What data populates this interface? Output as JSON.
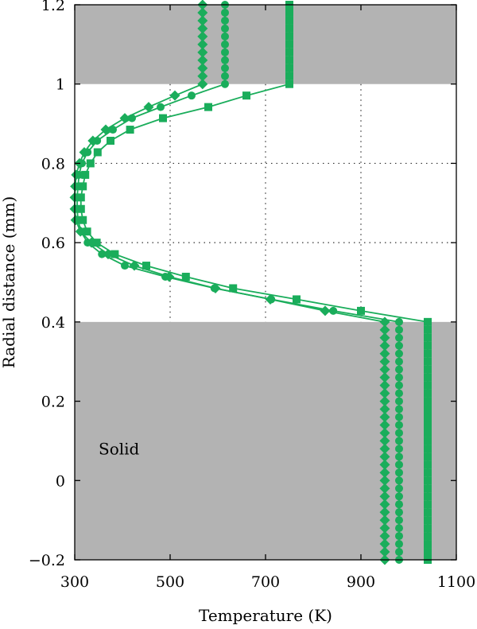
{
  "chart_data": {
    "type": "line",
    "xlabel": "Temperature (K)",
    "ylabel": "Radial distance (mm)",
    "xlim": [
      300,
      1100
    ],
    "ylim": [
      -0.2,
      1.2
    ],
    "x_ticks": [
      "300",
      "500",
      "700",
      "900",
      "1100"
    ],
    "y_ticks": [
      "−0.2",
      "0",
      "0.2",
      "0.4",
      "0.6",
      "0.8",
      "1",
      "1.2"
    ],
    "x_tick_values": [
      300,
      500,
      700,
      900,
      1100
    ],
    "y_tick_values": [
      -0.2,
      0,
      0.2,
      0.4,
      0.6,
      0.8,
      1.0,
      1.2
    ],
    "grid": "dotted, gas region only",
    "shaded_regions": [
      {
        "y": [
          1.0,
          1.2
        ],
        "color": "#b3b3b3"
      },
      {
        "y": [
          -0.2,
          0.4
        ],
        "color": "#b3b3b3"
      }
    ],
    "annotations": [
      {
        "text": "Solid",
        "x": 400,
        "y": 0.08
      }
    ],
    "color": "#1aad5b",
    "series": [
      {
        "marker": "square",
        "points": [
          [
            1040,
            -0.2
          ],
          [
            1040,
            -0.18
          ],
          [
            1040,
            -0.16
          ],
          [
            1040,
            -0.14
          ],
          [
            1040,
            -0.12
          ],
          [
            1040,
            -0.1
          ],
          [
            1040,
            -0.08
          ],
          [
            1040,
            -0.06
          ],
          [
            1040,
            -0.04
          ],
          [
            1040,
            -0.02
          ],
          [
            1040,
            0.0
          ],
          [
            1040,
            0.02
          ],
          [
            1040,
            0.04
          ],
          [
            1040,
            0.06
          ],
          [
            1040,
            0.08
          ],
          [
            1040,
            0.1
          ],
          [
            1040,
            0.12
          ],
          [
            1040,
            0.14
          ],
          [
            1040,
            0.16
          ],
          [
            1040,
            0.18
          ],
          [
            1040,
            0.2
          ],
          [
            1040,
            0.22
          ],
          [
            1040,
            0.24
          ],
          [
            1040,
            0.26
          ],
          [
            1040,
            0.28
          ],
          [
            1040,
            0.3
          ],
          [
            1040,
            0.32
          ],
          [
            1040,
            0.34
          ],
          [
            1040,
            0.36
          ],
          [
            1040,
            0.38
          ],
          [
            1040,
            0.4
          ],
          [
            900,
            0.428
          ],
          [
            765,
            0.457
          ],
          [
            632,
            0.485
          ],
          [
            533,
            0.514
          ],
          [
            450,
            0.542
          ],
          [
            384,
            0.571
          ],
          [
            346,
            0.6
          ],
          [
            326,
            0.628
          ],
          [
            317,
            0.657
          ],
          [
            313,
            0.685
          ],
          [
            313,
            0.714
          ],
          [
            317,
            0.742
          ],
          [
            322,
            0.771
          ],
          [
            333,
            0.8
          ],
          [
            348,
            0.828
          ],
          [
            375,
            0.857
          ],
          [
            416,
            0.885
          ],
          [
            485,
            0.914
          ],
          [
            580,
            0.942
          ],
          [
            660,
            0.971
          ],
          [
            750,
            1.0
          ],
          [
            750,
            1.02
          ],
          [
            750,
            1.04
          ],
          [
            750,
            1.06
          ],
          [
            750,
            1.08
          ],
          [
            750,
            1.1
          ],
          [
            750,
            1.12
          ],
          [
            750,
            1.14
          ],
          [
            750,
            1.16
          ],
          [
            750,
            1.18
          ],
          [
            750,
            1.2
          ]
        ]
      },
      {
        "marker": "circle",
        "points": [
          [
            980,
            -0.2
          ],
          [
            980,
            -0.18
          ],
          [
            980,
            -0.16
          ],
          [
            980,
            -0.14
          ],
          [
            980,
            -0.12
          ],
          [
            980,
            -0.1
          ],
          [
            980,
            -0.08
          ],
          [
            980,
            -0.06
          ],
          [
            980,
            -0.04
          ],
          [
            980,
            -0.02
          ],
          [
            980,
            0.0
          ],
          [
            980,
            0.02
          ],
          [
            980,
            0.04
          ],
          [
            980,
            0.06
          ],
          [
            980,
            0.08
          ],
          [
            980,
            0.1
          ],
          [
            980,
            0.12
          ],
          [
            980,
            0.14
          ],
          [
            980,
            0.16
          ],
          [
            980,
            0.18
          ],
          [
            980,
            0.2
          ],
          [
            980,
            0.22
          ],
          [
            980,
            0.24
          ],
          [
            980,
            0.26
          ],
          [
            980,
            0.28
          ],
          [
            980,
            0.3
          ],
          [
            980,
            0.32
          ],
          [
            980,
            0.34
          ],
          [
            980,
            0.36
          ],
          [
            980,
            0.38
          ],
          [
            980,
            0.4
          ],
          [
            842,
            0.428
          ],
          [
            712,
            0.457
          ],
          [
            593,
            0.485
          ],
          [
            490,
            0.514
          ],
          [
            405,
            0.542
          ],
          [
            357,
            0.571
          ],
          [
            327,
            0.6
          ],
          [
            313,
            0.628
          ],
          [
            307,
            0.657
          ],
          [
            305,
            0.685
          ],
          [
            305,
            0.714
          ],
          [
            307,
            0.742
          ],
          [
            309,
            0.771
          ],
          [
            315,
            0.8
          ],
          [
            327,
            0.828
          ],
          [
            347,
            0.857
          ],
          [
            380,
            0.885
          ],
          [
            420,
            0.914
          ],
          [
            480,
            0.942
          ],
          [
            545,
            0.971
          ],
          [
            615,
            1.0
          ],
          [
            615,
            1.02
          ],
          [
            615,
            1.04
          ],
          [
            615,
            1.06
          ],
          [
            615,
            1.08
          ],
          [
            615,
            1.1
          ],
          [
            615,
            1.12
          ],
          [
            615,
            1.14
          ],
          [
            615,
            1.16
          ],
          [
            615,
            1.18
          ],
          [
            615,
            1.2
          ]
        ]
      },
      {
        "marker": "diamond",
        "points": [
          [
            950,
            -0.2
          ],
          [
            950,
            -0.18
          ],
          [
            950,
            -0.16
          ],
          [
            950,
            -0.14
          ],
          [
            950,
            -0.12
          ],
          [
            950,
            -0.1
          ],
          [
            950,
            -0.08
          ],
          [
            950,
            -0.06
          ],
          [
            950,
            -0.04
          ],
          [
            950,
            -0.02
          ],
          [
            950,
            0.0
          ],
          [
            950,
            0.02
          ],
          [
            950,
            0.04
          ],
          [
            950,
            0.06
          ],
          [
            950,
            0.08
          ],
          [
            950,
            0.1
          ],
          [
            950,
            0.12
          ],
          [
            950,
            0.14
          ],
          [
            950,
            0.16
          ],
          [
            950,
            0.18
          ],
          [
            950,
            0.2
          ],
          [
            950,
            0.22
          ],
          [
            950,
            0.24
          ],
          [
            950,
            0.26
          ],
          [
            950,
            0.28
          ],
          [
            950,
            0.3
          ],
          [
            950,
            0.32
          ],
          [
            950,
            0.34
          ],
          [
            950,
            0.36
          ],
          [
            950,
            0.38
          ],
          [
            950,
            0.4
          ],
          [
            825,
            0.428
          ],
          [
            710,
            0.457
          ],
          [
            595,
            0.485
          ],
          [
            498,
            0.514
          ],
          [
            425,
            0.542
          ],
          [
            370,
            0.571
          ],
          [
            335,
            0.6
          ],
          [
            312,
            0.628
          ],
          [
            302,
            0.657
          ],
          [
            300,
            0.685
          ],
          [
            300,
            0.714
          ],
          [
            301,
            0.742
          ],
          [
            303,
            0.771
          ],
          [
            310,
            0.8
          ],
          [
            320,
            0.828
          ],
          [
            338,
            0.857
          ],
          [
            365,
            0.885
          ],
          [
            405,
            0.914
          ],
          [
            455,
            0.942
          ],
          [
            510,
            0.971
          ],
          [
            568,
            1.0
          ],
          [
            568,
            1.02
          ],
          [
            568,
            1.04
          ],
          [
            568,
            1.06
          ],
          [
            568,
            1.08
          ],
          [
            568,
            1.1
          ],
          [
            568,
            1.12
          ],
          [
            568,
            1.14
          ],
          [
            568,
            1.16
          ],
          [
            568,
            1.18
          ],
          [
            568,
            1.2
          ]
        ]
      }
    ]
  }
}
